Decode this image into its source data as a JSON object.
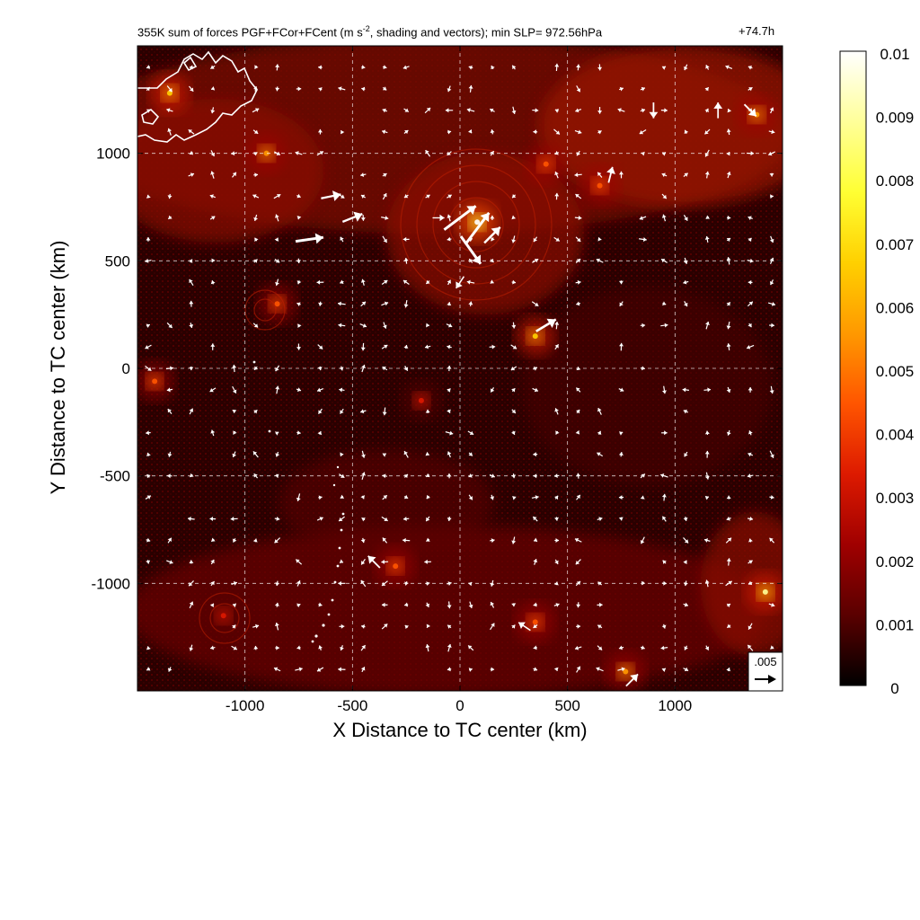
{
  "chart_data": {
    "type": "heatmap",
    "title": "355K sum of forces PGF+FCor+FCent (m s",
    "title_superscript": "-2",
    "title_rest": ", shading and vectors); min SLP= 972.56hPa",
    "time_label": "+74.7h",
    "xlabel": "X Distance to TC center (km)",
    "ylabel": "Y Distance to TC center (km)",
    "xlim": [
      -1500,
      1500
    ],
    "ylim": [
      -1500,
      1500
    ],
    "xticks": [
      -1000,
      -500,
      0,
      500,
      1000
    ],
    "xtick_labels": [
      "-1000",
      "-500",
      "0",
      "500",
      "1000"
    ],
    "yticks": [
      1000,
      500,
      0,
      -500,
      -1000
    ],
    "ytick_labels": [
      "1000",
      "500",
      "0",
      "-500",
      "-1000"
    ],
    "grid": true,
    "colorbar": {
      "min": 0,
      "max": 0.01,
      "ticks": [
        0.01,
        0.009,
        0.008,
        0.007,
        0.006,
        0.005,
        0.004,
        0.003,
        0.002,
        0.001,
        0
      ],
      "tick_labels": [
        "0.01",
        "0.009",
        "0.008",
        "0.007",
        "0.006",
        "0.005",
        "0.004",
        "0.003",
        "0.002",
        "0.001",
        "0"
      ],
      "colors": [
        "#000000",
        "#5a0000",
        "#a00000",
        "#dd1a00",
        "#ff5500",
        "#ff9900",
        "#ffd000",
        "#ffff33",
        "#ffff99",
        "#ffffff"
      ]
    },
    "reference_vector": {
      "label": ".005",
      "value": 0.005
    },
    "hotspots": [
      {
        "x": 80,
        "y": 680,
        "value": 0.008
      },
      {
        "x": 350,
        "y": 150,
        "value": 0.006
      },
      {
        "x": -1350,
        "y": 1280,
        "value": 0.006
      },
      {
        "x": -900,
        "y": 1000,
        "value": 0.005
      },
      {
        "x": 1420,
        "y": -1040,
        "value": 0.007
      },
      {
        "x": 1380,
        "y": 1180,
        "value": 0.005
      },
      {
        "x": 400,
        "y": 950,
        "value": 0.004
      },
      {
        "x": -850,
        "y": 300,
        "value": 0.004
      },
      {
        "x": 770,
        "y": -1410,
        "value": 0.005
      },
      {
        "x": 350,
        "y": -1180,
        "value": 0.004
      },
      {
        "x": -300,
        "y": -920,
        "value": 0.004
      },
      {
        "x": -1420,
        "y": -60,
        "value": 0.004
      },
      {
        "x": -180,
        "y": -150,
        "value": 0.003
      },
      {
        "x": -1100,
        "y": -1150,
        "value": 0.003
      },
      {
        "x": 650,
        "y": 850,
        "value": 0.004
      }
    ],
    "vectors": [
      {
        "x": 0,
        "y": 700,
        "u": 0.008,
        "v": 0.006
      },
      {
        "x": 80,
        "y": 650,
        "u": 0.006,
        "v": 0.008
      },
      {
        "x": 50,
        "y": 550,
        "u": 0.005,
        "v": -0.007
      },
      {
        "x": 150,
        "y": 620,
        "u": 0.004,
        "v": 0.004
      },
      {
        "x": -700,
        "y": 600,
        "u": 0.007,
        "v": 0.001
      },
      {
        "x": -500,
        "y": 700,
        "u": 0.005,
        "v": 0.002
      },
      {
        "x": -600,
        "y": 800,
        "u": 0.005,
        "v": 0.001
      },
      {
        "x": 400,
        "y": 200,
        "u": 0.005,
        "v": 0.003
      },
      {
        "x": 700,
        "y": 900,
        "u": 0.001,
        "v": 0.004
      },
      {
        "x": 1350,
        "y": 1200,
        "u": 0.003,
        "v": -0.003
      },
      {
        "x": 1200,
        "y": 1200,
        "u": 0.0,
        "v": 0.004
      },
      {
        "x": 900,
        "y": 1200,
        "u": 0.0,
        "v": -0.004
      },
      {
        "x": 300,
        "y": -1200,
        "u": -0.003,
        "v": 0.002
      },
      {
        "x": -400,
        "y": -900,
        "u": -0.003,
        "v": 0.003
      },
      {
        "x": 800,
        "y": -1450,
        "u": 0.003,
        "v": 0.003
      },
      {
        "x": -100,
        "y": 700,
        "u": 0.003,
        "v": 0.0
      },
      {
        "x": 0,
        "y": 400,
        "u": -0.002,
        "v": -0.003
      }
    ]
  }
}
